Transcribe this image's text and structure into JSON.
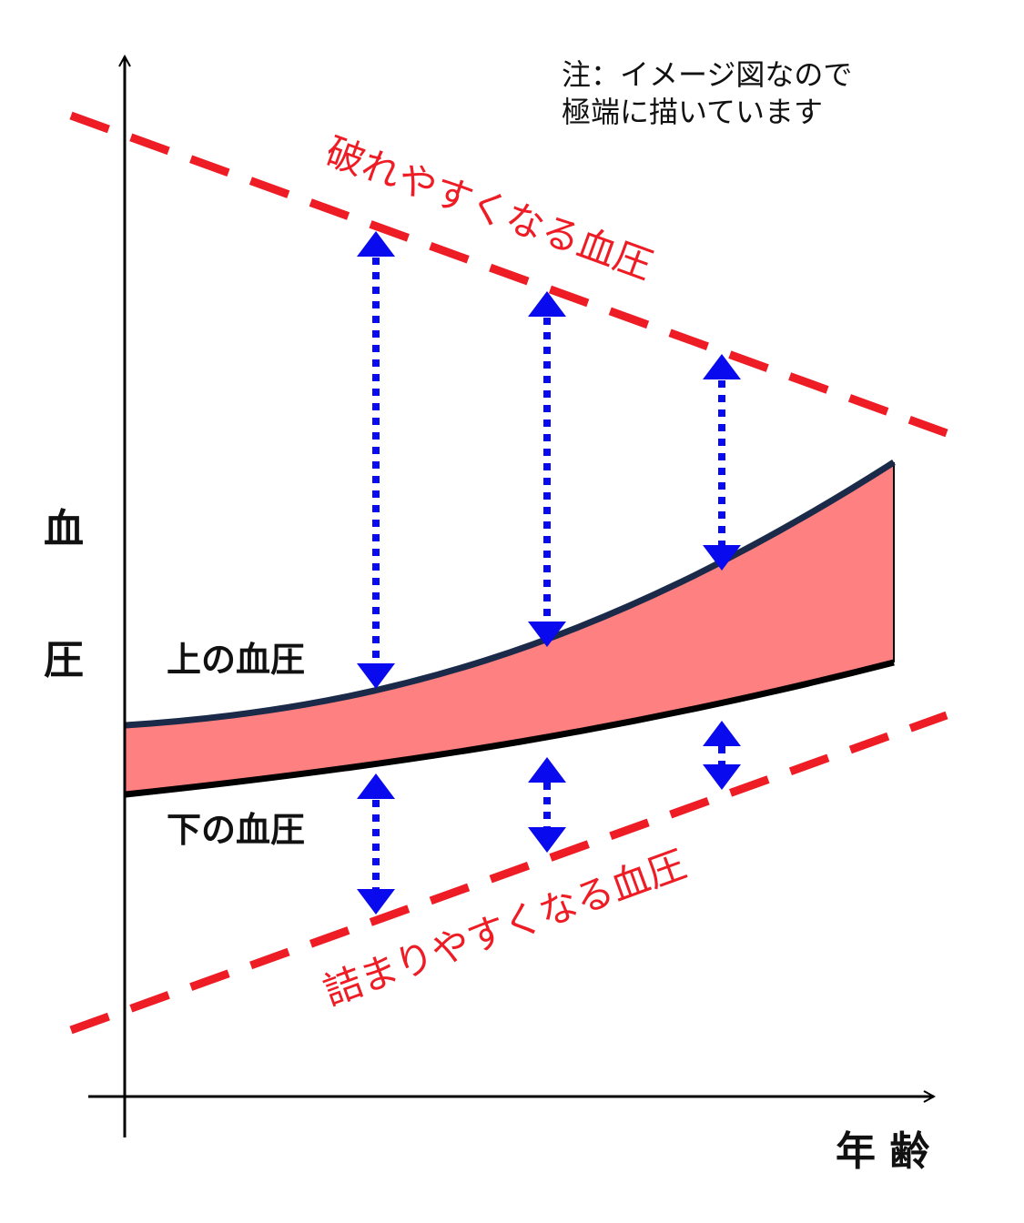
{
  "note": {
    "line1": "注：イメージ図なので",
    "line2": "極端に描いています"
  },
  "axes": {
    "y_label_1": "血",
    "y_label_2": "圧",
    "x_label": "年 齢"
  },
  "labels": {
    "upper_limit": "破れやすくなる血圧",
    "lower_limit": "詰まりやすくなる血圧",
    "systolic": "上の血圧",
    "diastolic": "下の血圧"
  },
  "colors": {
    "limit_line": "#ee1c24",
    "arrow": "#0a0aee",
    "band_fill": "#ff8080",
    "systolic_line": "#1b2a49",
    "diastolic_line": "#000000",
    "axis": "#000000"
  }
}
